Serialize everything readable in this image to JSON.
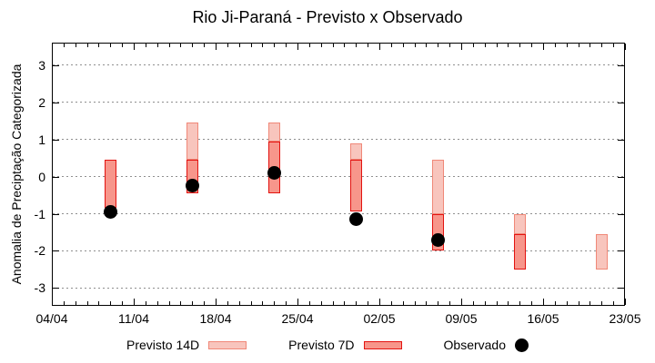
{
  "title": "Rio Ji-Paraná - Previsto x Observado",
  "colors": {
    "previsto_14d_fill": "#f8c5bd",
    "previsto_14d_border": "#f08878",
    "previsto_7d_fill": "#f7968b",
    "previsto_7d_border": "#e31310",
    "observado": "#000000",
    "grid": "#8f8f8f",
    "axis": "#000000"
  },
  "legend": [
    {
      "key": "previsto-14d",
      "label": "Previsto 14D",
      "type": "box",
      "fill": "#f8c5bd",
      "border": "#f08878"
    },
    {
      "key": "previsto-7d",
      "label": "Previsto 7D",
      "type": "box",
      "fill": "#f7968b",
      "border": "#e31310"
    },
    {
      "key": "observado",
      "label": "Observado",
      "type": "dot",
      "fill": "#000000"
    }
  ],
  "chart_data": {
    "type": "bar",
    "subtype": "weekly-forecast-range-bars-with-observed-scatter",
    "title": "Rio Ji-Paraná - Previsto x Observado",
    "xlabel": "",
    "ylabel": "Anomalia de Preciptação Categorizada",
    "ylim": [
      -3.6,
      3.6
    ],
    "y_ticks": [
      3,
      2,
      1,
      0,
      -1,
      -2,
      -3
    ],
    "x_tick_labels": [
      "04/04",
      "11/04",
      "18/04",
      "25/04",
      "02/05",
      "09/05",
      "16/05",
      "23/05"
    ],
    "x_span_days": 49,
    "x_major_every_days": 7,
    "grid": "horizontal-dotted",
    "legend_position": "bottom",
    "series_note": "previsto ranges are [high, low] in category units",
    "groups": [
      {
        "date": "09/04",
        "day_offset": 5,
        "previsto_14d": null,
        "previsto_7d": [
          0.45,
          -0.85
        ],
        "observado": -0.95
      },
      {
        "date": "16/04",
        "day_offset": 12,
        "previsto_14d": [
          1.45,
          0.45
        ],
        "previsto_7d": [
          0.45,
          -0.45
        ],
        "observado": -0.25
      },
      {
        "date": "23/04",
        "day_offset": 19,
        "previsto_14d": [
          1.45,
          0.95
        ],
        "previsto_7d": [
          0.95,
          -0.45
        ],
        "observado": 0.1
      },
      {
        "date": "30/04",
        "day_offset": 26,
        "previsto_14d": [
          0.9,
          0.45
        ],
        "previsto_7d": [
          0.45,
          -0.95
        ],
        "observado": -1.15
      },
      {
        "date": "07/05",
        "day_offset": 33,
        "previsto_14d": [
          0.45,
          -1.0
        ],
        "previsto_7d": [
          -1.0,
          -2.0
        ],
        "observado": -1.7
      },
      {
        "date": "14/05",
        "day_offset": 40,
        "previsto_14d": [
          -1.0,
          -1.55
        ],
        "previsto_7d": [
          -1.55,
          -2.5
        ],
        "observado": null
      },
      {
        "date": "21/05",
        "day_offset": 47,
        "previsto_14d": [
          -1.55,
          -2.5
        ],
        "previsto_7d": null,
        "observado": null
      }
    ]
  }
}
